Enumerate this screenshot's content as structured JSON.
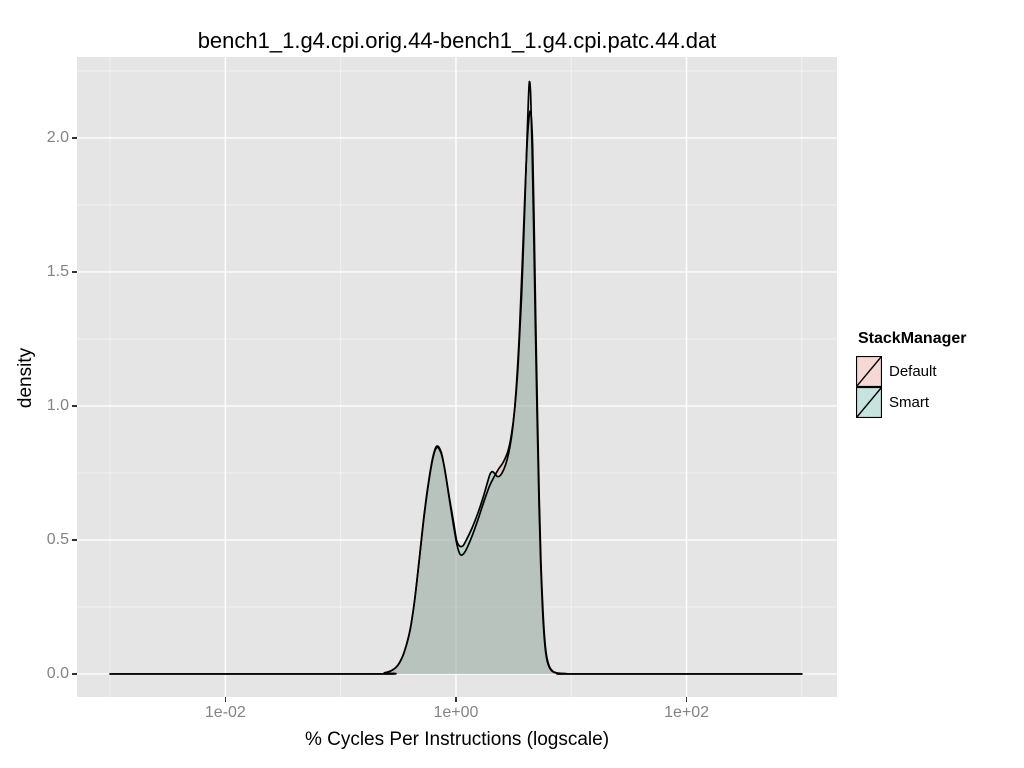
{
  "title": "bench1_1.g4.cpi.orig.44-bench1_1.g4.cpi.patc.44.dat",
  "axes": {
    "x": {
      "label": "% Cycles Per Instructions (logscale)",
      "scale": "log10",
      "ticks": [
        {
          "v": -2,
          "label": "1e-02"
        },
        {
          "v": 0,
          "label": "1e+00"
        },
        {
          "v": 2,
          "label": "1e+02"
        }
      ],
      "minor": [
        -3,
        -1,
        1,
        3
      ]
    },
    "y": {
      "label": "density",
      "ticks": [
        {
          "v": 0.0,
          "label": "0.0"
        },
        {
          "v": 0.5,
          "label": "0.5"
        },
        {
          "v": 1.0,
          "label": "1.0"
        },
        {
          "v": 1.5,
          "label": "1.5"
        },
        {
          "v": 2.0,
          "label": "2.0"
        }
      ],
      "minor": [
        0.25,
        0.75,
        1.25,
        1.75,
        2.25
      ]
    }
  },
  "legend": {
    "title": "StackManager",
    "entries": [
      {
        "label": "Default",
        "fill": "rgba(231,152,141,0.38)"
      },
      {
        "label": "Smart",
        "fill": "rgba(118,188,176,0.42)"
      }
    ]
  },
  "colors": {
    "panel_bg": "#e5e5e5",
    "grid_major": "#ffffff",
    "grid_minor": "rgba(255,255,255,0.55)",
    "tick_mark": "#333333",
    "tick_label": "#838383",
    "outline": "#000000"
  },
  "chart_data": {
    "type": "area",
    "subtype": "density",
    "x_scale": "log10",
    "x_range": [
      -3.287,
      3.305
    ],
    "y_range": [
      -0.086,
      2.302
    ],
    "xlabel": "% Cycles Per Instructions (logscale)",
    "ylabel": "density",
    "title": "bench1_1.g4.cpi.orig.44-bench1_1.g4.cpi.patc.44.dat",
    "grid": true,
    "legend_position": "right",
    "series": [
      {
        "name": "Default",
        "fill": "rgba(231,152,141,0.38)",
        "stroke": "#000000",
        "points": [
          [
            -3.0,
            0
          ],
          [
            -0.72,
            0
          ],
          [
            -0.62,
            0.004
          ],
          [
            -0.55,
            0.015
          ],
          [
            -0.5,
            0.035
          ],
          [
            -0.45,
            0.08
          ],
          [
            -0.4,
            0.16
          ],
          [
            -0.36,
            0.27
          ],
          [
            -0.32,
            0.42
          ],
          [
            -0.28,
            0.58
          ],
          [
            -0.24,
            0.71
          ],
          [
            -0.2,
            0.81
          ],
          [
            -0.167,
            0.85
          ],
          [
            -0.13,
            0.83
          ],
          [
            -0.1,
            0.77
          ],
          [
            -0.06,
            0.66
          ],
          [
            -0.02,
            0.55
          ],
          [
            0.01,
            0.48
          ],
          [
            0.035,
            0.447
          ],
          [
            0.06,
            0.446
          ],
          [
            0.09,
            0.465
          ],
          [
            0.14,
            0.515
          ],
          [
            0.19,
            0.575
          ],
          [
            0.24,
            0.64
          ],
          [
            0.29,
            0.7
          ],
          [
            0.33,
            0.735
          ],
          [
            0.37,
            0.765
          ],
          [
            0.41,
            0.79
          ],
          [
            0.45,
            0.83
          ],
          [
            0.48,
            0.89
          ],
          [
            0.51,
            0.99
          ],
          [
            0.54,
            1.16
          ],
          [
            0.57,
            1.42
          ],
          [
            0.595,
            1.72
          ],
          [
            0.615,
            1.98
          ],
          [
            0.628,
            2.14
          ],
          [
            0.637,
            2.21
          ],
          [
            0.648,
            2.16
          ],
          [
            0.66,
            1.97
          ],
          [
            0.675,
            1.64
          ],
          [
            0.69,
            1.27
          ],
          [
            0.705,
            0.94
          ],
          [
            0.72,
            0.64
          ],
          [
            0.735,
            0.41
          ],
          [
            0.75,
            0.25
          ],
          [
            0.765,
            0.14
          ],
          [
            0.78,
            0.075
          ],
          [
            0.8,
            0.035
          ],
          [
            0.83,
            0.012
          ],
          [
            0.87,
            0.004
          ],
          [
            0.95,
            0.001
          ],
          [
            1.05,
            0
          ],
          [
            3.0,
            0
          ]
        ]
      },
      {
        "name": "Smart",
        "fill": "rgba(118,188,176,0.42)",
        "stroke": "#000000",
        "points": [
          [
            -3.0,
            0
          ],
          [
            -0.72,
            0
          ],
          [
            -0.62,
            0.004
          ],
          [
            -0.55,
            0.015
          ],
          [
            -0.5,
            0.035
          ],
          [
            -0.45,
            0.08
          ],
          [
            -0.4,
            0.16
          ],
          [
            -0.36,
            0.27
          ],
          [
            -0.32,
            0.42
          ],
          [
            -0.28,
            0.575
          ],
          [
            -0.24,
            0.705
          ],
          [
            -0.2,
            0.805
          ],
          [
            -0.167,
            0.845
          ],
          [
            -0.13,
            0.825
          ],
          [
            -0.1,
            0.77
          ],
          [
            -0.06,
            0.665
          ],
          [
            -0.02,
            0.565
          ],
          [
            0.005,
            0.5
          ],
          [
            0.03,
            0.478
          ],
          [
            0.06,
            0.478
          ],
          [
            0.09,
            0.5
          ],
          [
            0.14,
            0.545
          ],
          [
            0.19,
            0.6
          ],
          [
            0.24,
            0.665
          ],
          [
            0.27,
            0.71
          ],
          [
            0.295,
            0.745
          ],
          [
            0.315,
            0.755
          ],
          [
            0.335,
            0.748
          ],
          [
            0.355,
            0.738
          ],
          [
            0.375,
            0.737
          ],
          [
            0.4,
            0.75
          ],
          [
            0.43,
            0.78
          ],
          [
            0.46,
            0.83
          ],
          [
            0.49,
            0.91
          ],
          [
            0.52,
            1.05
          ],
          [
            0.55,
            1.27
          ],
          [
            0.575,
            1.53
          ],
          [
            0.6,
            1.81
          ],
          [
            0.62,
            2.0
          ],
          [
            0.638,
            2.09
          ],
          [
            0.652,
            2.085
          ],
          [
            0.665,
            1.97
          ],
          [
            0.678,
            1.68
          ],
          [
            0.692,
            1.32
          ],
          [
            0.707,
            0.97
          ],
          [
            0.722,
            0.66
          ],
          [
            0.737,
            0.42
          ],
          [
            0.752,
            0.26
          ],
          [
            0.767,
            0.145
          ],
          [
            0.785,
            0.07
          ],
          [
            0.81,
            0.028
          ],
          [
            0.84,
            0.01
          ],
          [
            0.88,
            0.003
          ],
          [
            0.96,
            0.001
          ],
          [
            1.06,
            0
          ],
          [
            3.0,
            0
          ]
        ]
      }
    ]
  }
}
